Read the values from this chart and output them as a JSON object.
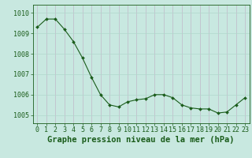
{
  "x": [
    0,
    1,
    2,
    3,
    4,
    5,
    6,
    7,
    8,
    9,
    10,
    11,
    12,
    13,
    14,
    15,
    16,
    17,
    18,
    19,
    20,
    21,
    22,
    23
  ],
  "y": [
    1009.3,
    1009.7,
    1009.7,
    1009.2,
    1008.6,
    1007.8,
    1006.85,
    1006.0,
    1005.5,
    1005.4,
    1005.65,
    1005.75,
    1005.8,
    1006.0,
    1006.0,
    1005.85,
    1005.5,
    1005.35,
    1005.3,
    1005.3,
    1005.1,
    1005.15,
    1005.5,
    1005.85
  ],
  "line_color": "#1a5c1a",
  "marker_color": "#1a5c1a",
  "bg_color": "#c8e8e0",
  "grid_color_v": "#b0d8cc",
  "grid_color_h": "#c0b8c8",
  "title": "Graphe pression niveau de la mer (hPa)",
  "xlabel_ticks": [
    0,
    1,
    2,
    3,
    4,
    5,
    6,
    7,
    8,
    9,
    10,
    11,
    12,
    13,
    14,
    15,
    16,
    17,
    18,
    19,
    20,
    21,
    22,
    23
  ],
  "yticks": [
    1005,
    1006,
    1007,
    1008,
    1009,
    1010
  ],
  "ylim": [
    1004.6,
    1010.4
  ],
  "xlim": [
    -0.5,
    23.5
  ],
  "tick_label_color": "#1a5c1a",
  "title_color": "#1a5c1a",
  "title_fontsize": 7.5,
  "tick_fontsize": 6.0
}
